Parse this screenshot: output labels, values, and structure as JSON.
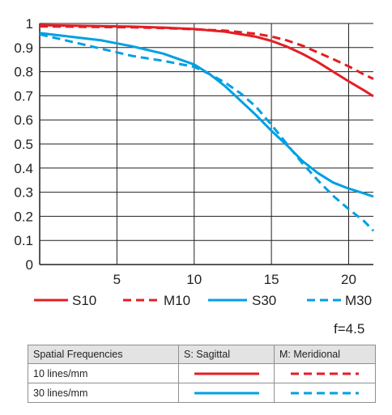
{
  "chart_data": {
    "type": "line",
    "xlim": [
      0,
      21.6
    ],
    "ylim": [
      0,
      1
    ],
    "x_ticks": [
      "5",
      "10",
      "15",
      "20"
    ],
    "y_ticks": [
      "0",
      "0.1",
      "0.2",
      "0.3",
      "0.4",
      "0.5",
      "0.6",
      "0.7",
      "0.8",
      "0.9",
      "1"
    ],
    "grid": true,
    "series": [
      {
        "name": "S10",
        "color": "#e31e24",
        "dashed": false,
        "x": [
          0,
          3,
          6,
          8,
          10,
          12,
          14,
          15,
          16,
          17,
          18,
          19,
          20,
          21,
          21.6
        ],
        "y": [
          0.993,
          0.99,
          0.987,
          0.983,
          0.977,
          0.966,
          0.945,
          0.928,
          0.904,
          0.874,
          0.84,
          0.8,
          0.76,
          0.722,
          0.698
        ]
      },
      {
        "name": "M10",
        "color": "#e31e24",
        "dashed": true,
        "x": [
          0,
          3,
          6,
          8,
          10,
          12,
          14,
          15,
          16,
          17,
          18,
          19,
          20,
          21,
          21.6
        ],
        "y": [
          0.988,
          0.986,
          0.984,
          0.981,
          0.976,
          0.97,
          0.957,
          0.946,
          0.93,
          0.908,
          0.88,
          0.852,
          0.822,
          0.788,
          0.77
        ]
      },
      {
        "name": "S30",
        "color": "#00a0e3",
        "dashed": false,
        "x": [
          0,
          2,
          4,
          6,
          8,
          10,
          11,
          12,
          13,
          14,
          15,
          16,
          17,
          18,
          19,
          20,
          21,
          21.6
        ],
        "y": [
          0.96,
          0.945,
          0.93,
          0.905,
          0.875,
          0.83,
          0.79,
          0.74,
          0.68,
          0.62,
          0.555,
          0.495,
          0.43,
          0.38,
          0.34,
          0.315,
          0.295,
          0.282
        ]
      },
      {
        "name": "M30",
        "color": "#00a0e3",
        "dashed": true,
        "x": [
          0,
          2,
          4,
          6,
          8,
          10,
          11,
          12,
          13,
          14,
          15,
          16,
          17,
          18,
          19,
          20,
          21,
          21.6
        ],
        "y": [
          0.955,
          0.925,
          0.895,
          0.865,
          0.845,
          0.82,
          0.79,
          0.755,
          0.71,
          0.655,
          0.58,
          0.5,
          0.42,
          0.35,
          0.285,
          0.23,
          0.18,
          0.14
        ]
      }
    ]
  },
  "aperture": "f=4.5",
  "table": {
    "header": [
      "Spatial Frequencies",
      "S: Sagittal",
      "M: Meridional"
    ],
    "rows": [
      {
        "label": "10 lines/mm",
        "color": "#e31e24"
      },
      {
        "label": "30 lines/mm",
        "color": "#00a0e3"
      }
    ]
  }
}
